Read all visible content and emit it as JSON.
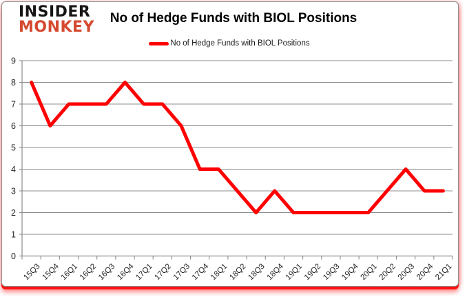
{
  "logo": {
    "line1": "INSIDER",
    "line2": "MONKEY"
  },
  "header": {
    "title": "No of Hedge Funds with BIOL Positions"
  },
  "legend": {
    "label": "No of Hedge Funds with BIOL Positions"
  },
  "chart_data": {
    "type": "line",
    "title": "No of Hedge Funds with BIOL Positions",
    "categories": [
      "15Q3",
      "15Q4",
      "16Q1",
      "16Q2",
      "16Q3",
      "16Q4",
      "17Q1",
      "17Q2",
      "17Q3",
      "17Q4",
      "18Q1",
      "18Q2",
      "18Q3",
      "18Q4",
      "19Q1",
      "19Q2",
      "19Q3",
      "19Q4",
      "20Q1",
      "20Q2",
      "20Q3",
      "20Q4",
      "21Q1"
    ],
    "series": [
      {
        "name": "No of Hedge Funds with BIOL Positions",
        "values": [
          8,
          6,
          7,
          7,
          7,
          8,
          7,
          7,
          6,
          4,
          4,
          3,
          2,
          3,
          2,
          2,
          2,
          2,
          2,
          3,
          4,
          3,
          3
        ]
      }
    ],
    "xlabel": "",
    "ylabel": "",
    "ylim": [
      0,
      9
    ],
    "yticks": [
      0,
      1,
      2,
      3,
      4,
      5,
      6,
      7,
      8,
      9
    ],
    "grid": "horizontal",
    "legend_position": "top-center"
  },
  "colors": {
    "line": "#ff0000",
    "grid": "#8c8c8c",
    "axis": "#8c8c8c",
    "tick_label": "#262626",
    "logo_primary": "#161414",
    "logo_accent": "#d5492f",
    "bottom_bar": "#ff1010"
  }
}
